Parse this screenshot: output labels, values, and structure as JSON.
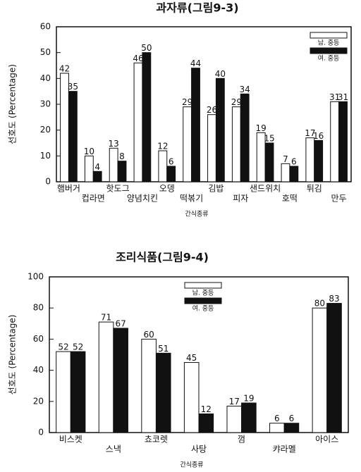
{
  "chart_data": [
    {
      "type": "bar",
      "title": "과자류(그림9-3)",
      "y_label": "선호도 (Percentage)",
      "x_label": "간식종류",
      "categories": [
        "햄버거",
        "컵라면",
        "핫도그",
        "양념치킨",
        "오뎅",
        "떡볶기",
        "김밥",
        "피자",
        "샌드위치",
        "호떡",
        "튀김",
        "만두"
      ],
      "series": [
        {
          "name": "남. 중등",
          "color": "#ffffff",
          "values": [
            42,
            10,
            13,
            46,
            12,
            29,
            26,
            29,
            19,
            7,
            17,
            31
          ]
        },
        {
          "name": "여. 중등",
          "color": "#111111",
          "values": [
            35,
            4,
            8,
            50,
            6,
            44,
            40,
            34,
            15,
            6,
            16,
            31
          ]
        }
      ],
      "ylim": [
        0,
        60
      ],
      "yticks": [
        0,
        10,
        20,
        30,
        40,
        50,
        60
      ],
      "legend": "top-right"
    },
    {
      "type": "bar",
      "title": "조리식품(그림9-4)",
      "y_label": "선호도 (Percentage)",
      "x_label": "간식종류",
      "categories": [
        "비스켓",
        "스낵",
        "쵸코렛",
        "사탕",
        "껌",
        "캬라멜",
        "아이스"
      ],
      "series": [
        {
          "name": "남. 중등",
          "color": "#ffffff",
          "values": [
            52,
            71,
            60,
            45,
            17,
            6,
            80
          ]
        },
        {
          "name": "여. 중등",
          "color": "#111111",
          "values": [
            52,
            67,
            51,
            12,
            19,
            6,
            83
          ]
        }
      ],
      "ylim": [
        0,
        100
      ],
      "yticks": [
        0,
        20,
        40,
        60,
        80,
        100
      ],
      "legend": "top-center"
    }
  ]
}
